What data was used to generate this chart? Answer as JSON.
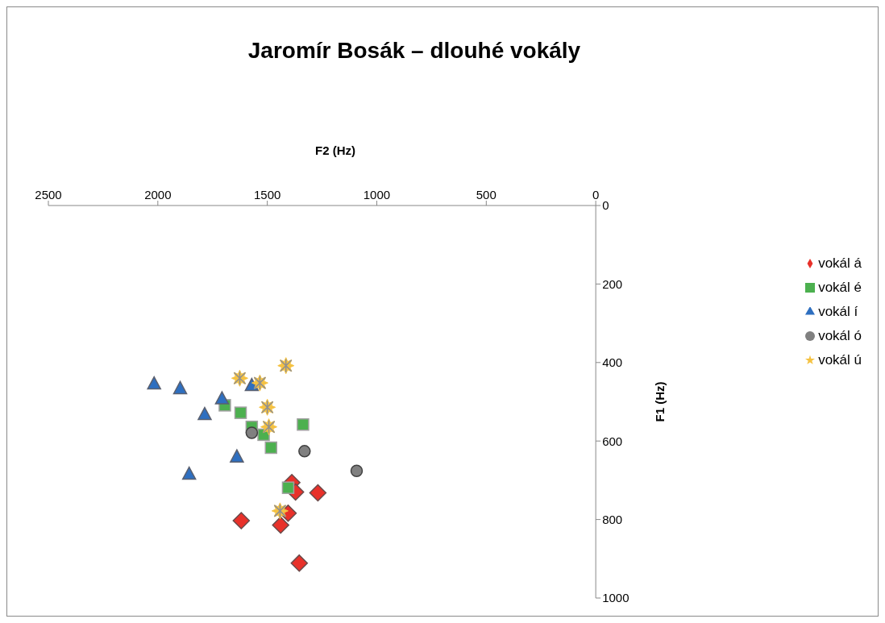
{
  "chart_data": {
    "type": "scatter",
    "title": "Jaromír Bosák – dlouhé vokály",
    "xlabel": "F2 (Hz)",
    "ylabel": "F1 (Hz)",
    "xlim": [
      2500,
      0
    ],
    "xticks": [
      2500,
      2000,
      1500,
      1000,
      500,
      0
    ],
    "ylim": [
      1000,
      0
    ],
    "yticks": [
      0,
      200,
      400,
      600,
      800,
      1000
    ],
    "grid": false,
    "legend": "right",
    "series": [
      {
        "name": "vokál á",
        "color": "#e8312a",
        "marker": "diamond",
        "x": [
          1388,
          1371,
          1269,
          1405,
          1619,
          1439,
          1354
        ],
        "values": [
          706,
          730,
          732,
          784,
          803,
          814,
          911
        ]
      },
      {
        "name": "vokál é",
        "color": "#4cb04f",
        "marker": "square",
        "x": [
          1694,
          1622,
          1571,
          1517,
          1483,
          1337,
          1405
        ],
        "values": [
          509,
          528,
          564,
          584,
          617,
          558,
          719
        ]
      },
      {
        "name": "vokál í",
        "color": "#2e6fc0",
        "marker": "triangle",
        "x": [
          2017,
          1898,
          1707,
          1786,
          1571,
          1639,
          1857
        ],
        "values": [
          455,
          467,
          493,
          533,
          459,
          641,
          685
        ]
      },
      {
        "name": "vokál ó",
        "color": "#808080",
        "marker": "circle",
        "x": [
          1571,
          1330,
          1092
        ],
        "values": [
          579,
          626,
          676
        ]
      },
      {
        "name": "vokál ú",
        "color": "#f5c242",
        "marker": "star",
        "x": [
          1415,
          1626,
          1534,
          1500,
          1493,
          1442
        ],
        "values": [
          408,
          440,
          452,
          514,
          564,
          778
        ]
      }
    ]
  }
}
